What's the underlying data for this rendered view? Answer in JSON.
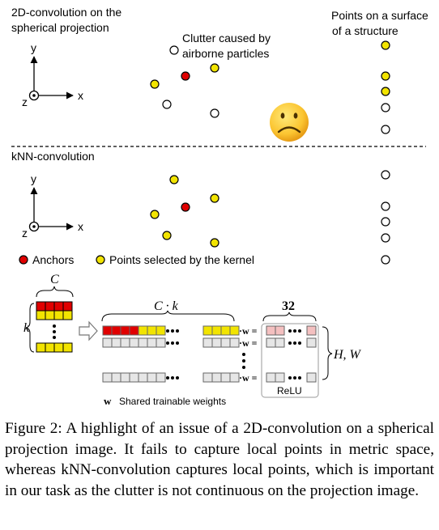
{
  "top": {
    "title_line1": "2D-convolution on the",
    "title_line2": "spherical projection",
    "clutter_line1": "Clutter caused by",
    "clutter_line2": "airborne particles",
    "surface_line1": "Points on a surface",
    "surface_line2": "of a structure"
  },
  "bottom": {
    "title": "kNN-convolution"
  },
  "axes": {
    "y": "y",
    "x": "x",
    "z": "z"
  },
  "legend": {
    "anchors": "Anchors",
    "selected": "Points selected by the kernel"
  },
  "matrix": {
    "c_label": "C",
    "k_label": "k",
    "ck_label": "C · k",
    "n32_label": "32",
    "hw_label": "H, W",
    "w_symbol": "·w =",
    "relu": "ReLU",
    "shared_w": "w",
    "shared_text": "Shared trainable weights"
  },
  "caption": "Figure 2: A highlight of an issue of a 2D-convolution on a spherical projection image. It fails to capture local points in metric space, whereas kNN-convolution captures local points, which is important in our task as the clutter is not continuous on the projection image.",
  "colors": {
    "yellow": "#f2e400",
    "red": "#e00000",
    "pink": "#f4c0c0",
    "grey": "#e6e6e6"
  }
}
